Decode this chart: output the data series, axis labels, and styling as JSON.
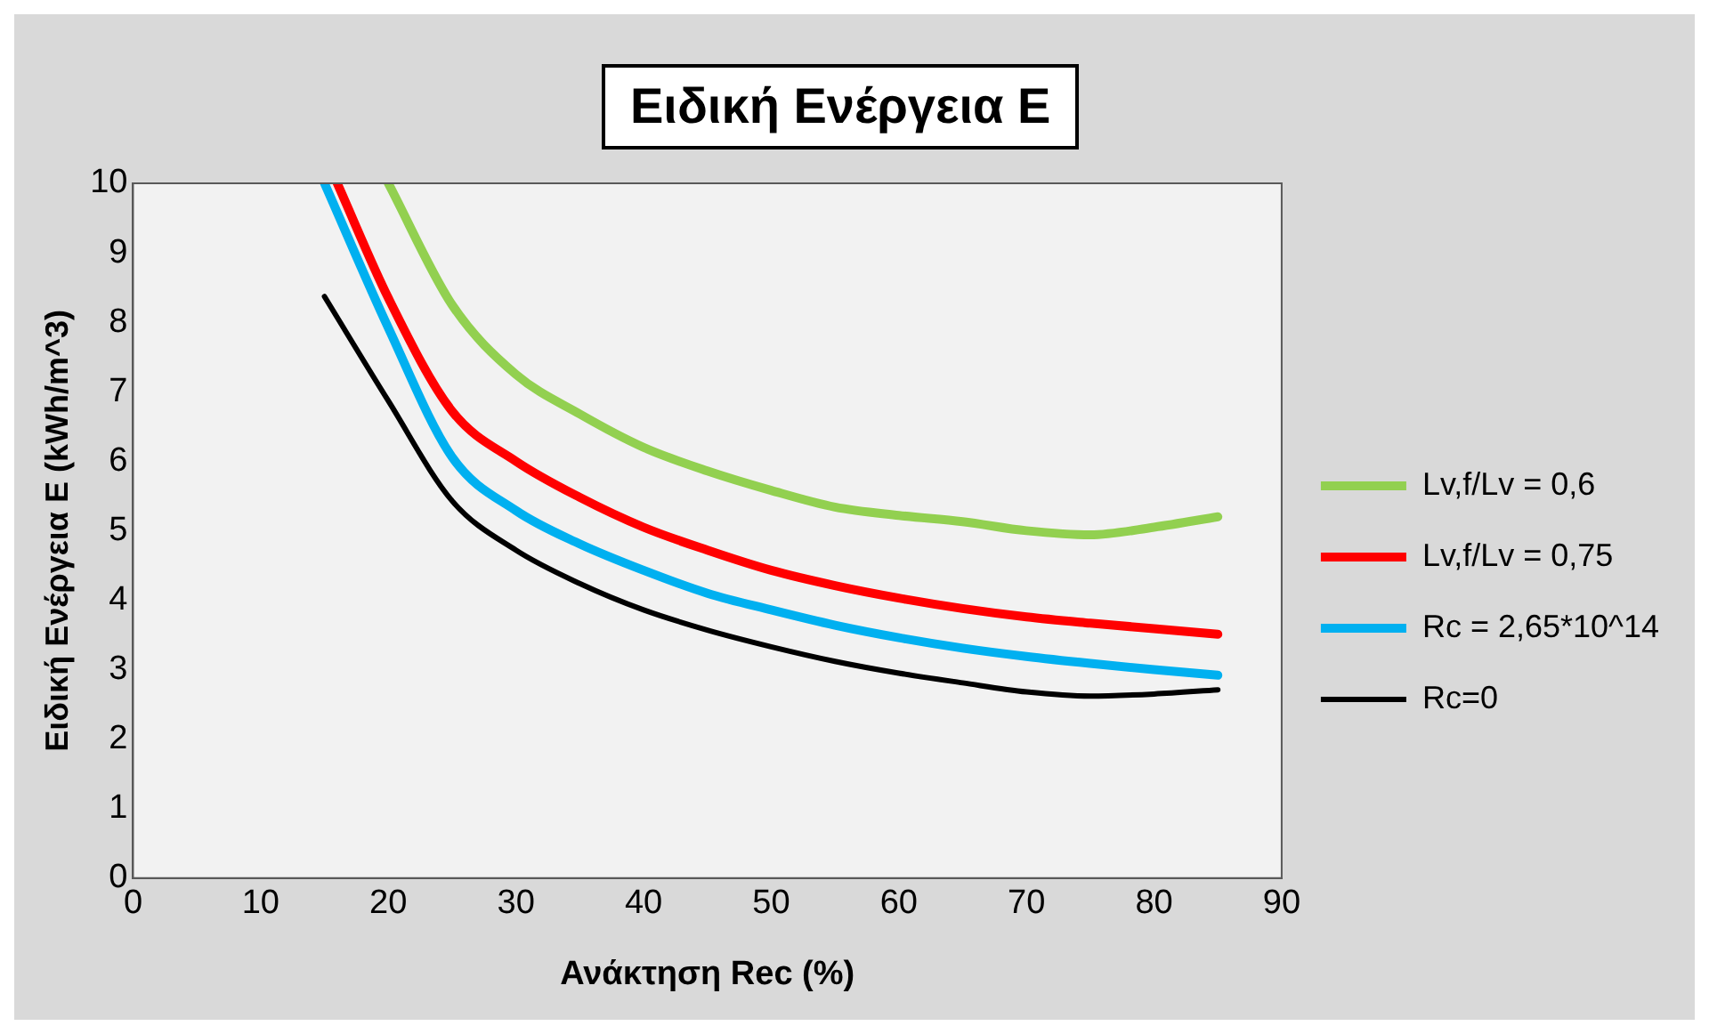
{
  "chart_data": {
    "type": "line",
    "title": "Ειδική Ενέργεια Ε",
    "xlabel": "Ανάκτηση Rec (%)",
    "ylabel": "Ειδική Ενέργεια Ε (kWh/m^3)",
    "xlim": [
      0,
      90
    ],
    "ylim": [
      0,
      10
    ],
    "xticks": [
      0,
      10,
      20,
      30,
      40,
      50,
      60,
      70,
      80,
      90
    ],
    "yticks": [
      0,
      1,
      2,
      3,
      4,
      5,
      6,
      7,
      8,
      9,
      10
    ],
    "legend": "right",
    "marker": "none",
    "line_style": "solid",
    "series": [
      {
        "name": "Lv,f/Lv = 0,6",
        "color": "#92d050",
        "x": [
          20,
          25,
          30,
          35,
          40,
          45,
          50,
          55,
          60,
          65,
          70,
          75,
          80,
          85
        ],
        "values": [
          10,
          8.25,
          7.25,
          6.68,
          6.2,
          5.86,
          5.58,
          5.34,
          5.22,
          5.13,
          5.0,
          4.94,
          5.05,
          5.2
        ]
      },
      {
        "name": "Lv,f/Lv = 0,75",
        "color": "#ff0000",
        "x": [
          16,
          20,
          25,
          30,
          35,
          40,
          45,
          50,
          55,
          60,
          65,
          70,
          75,
          80,
          85
        ],
        "values": [
          10,
          8.35,
          6.72,
          6.0,
          5.48,
          5.05,
          4.72,
          4.43,
          4.21,
          4.03,
          3.88,
          3.76,
          3.67,
          3.59,
          3.51
        ]
      },
      {
        "name": "Rc = 2,65*10^14",
        "color": "#00b0f0",
        "x": [
          15,
          20,
          25,
          30,
          35,
          40,
          45,
          50,
          55,
          60,
          65,
          70,
          75,
          80,
          85
        ],
        "values": [
          10,
          7.92,
          6.06,
          5.29,
          4.81,
          4.43,
          4.1,
          3.86,
          3.64,
          3.46,
          3.31,
          3.19,
          3.09,
          3.0,
          2.92
        ]
      },
      {
        "name": "Rc=0",
        "color": "#000000",
        "x": [
          15,
          20,
          25,
          30,
          35,
          40,
          45,
          50,
          55,
          60,
          65,
          70,
          75,
          80,
          85
        ],
        "values": [
          8.37,
          6.87,
          5.43,
          4.72,
          4.24,
          3.86,
          3.57,
          3.33,
          3.12,
          2.95,
          2.81,
          2.68,
          2.62,
          2.65,
          2.71
        ]
      }
    ]
  }
}
